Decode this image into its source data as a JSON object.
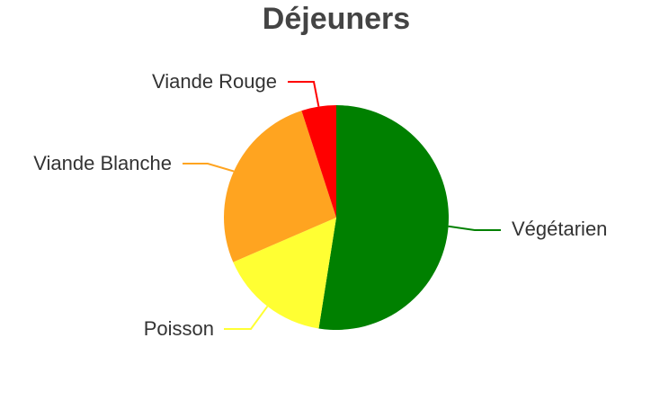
{
  "chart_data": {
    "type": "pie",
    "title": "Déjeuners",
    "slices": [
      {
        "label": "Végétarien",
        "value": 52.5,
        "color": "#008000"
      },
      {
        "label": "Poisson",
        "value": 16.0,
        "color": "#ffff33"
      },
      {
        "label": "Viande Blanche",
        "value": 26.5,
        "color": "#ffa420"
      },
      {
        "label": "Viande Rouge",
        "value": 5.0,
        "color": "#ff0000"
      }
    ],
    "legend": "none",
    "labels": "outside-with-leader-lines"
  }
}
